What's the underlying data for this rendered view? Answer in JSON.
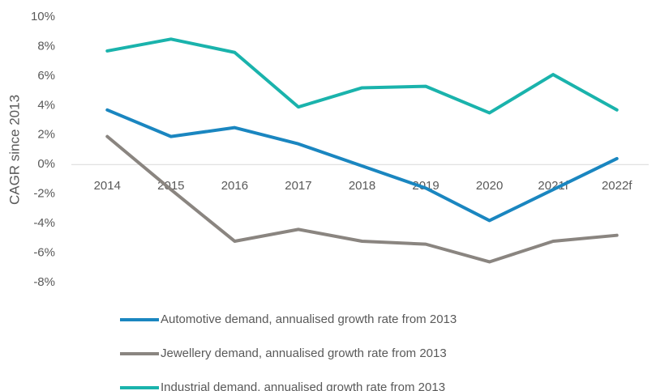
{
  "chart_data": {
    "type": "line",
    "y_label": "CAGR since 2013",
    "categories": [
      "2014",
      "2015",
      "2016",
      "2017",
      "2018",
      "2019",
      "2020",
      "2021f",
      "2022f"
    ],
    "series": [
      {
        "name": "Automotive demand, annualised growth rate from 2013",
        "color": "#1a86c0",
        "values": [
          3.7,
          1.9,
          2.5,
          1.4,
          -0.1,
          -1.6,
          -3.8,
          -1.7,
          0.4
        ]
      },
      {
        "name": "Jewellery demand, annualised growth rate from 2013",
        "color": "#8a8580",
        "values": [
          1.9,
          -1.7,
          -5.2,
          -4.4,
          -5.2,
          -5.4,
          -6.6,
          -5.2,
          -4.8
        ]
      },
      {
        "name": "Industrial demand, annualised growth rate from 2013",
        "color": "#1ab3ac",
        "values": [
          7.7,
          8.5,
          7.6,
          3.9,
          5.2,
          5.3,
          3.5,
          6.1,
          3.7
        ]
      }
    ],
    "ylim": [
      -8,
      10
    ],
    "yticks": [
      {
        "value": -8,
        "label": "-8%"
      },
      {
        "value": -6,
        "label": "-6%"
      },
      {
        "value": -4,
        "label": "-4%"
      },
      {
        "value": -2,
        "label": "-2%"
      },
      {
        "value": 0,
        "label": "0%"
      },
      {
        "value": 2,
        "label": "2%"
      },
      {
        "value": 4,
        "label": "4%"
      },
      {
        "value": 6,
        "label": "6%"
      },
      {
        "value": 8,
        "label": "8%"
      },
      {
        "value": 10,
        "label": "10%"
      }
    ],
    "legend": "bottom"
  }
}
